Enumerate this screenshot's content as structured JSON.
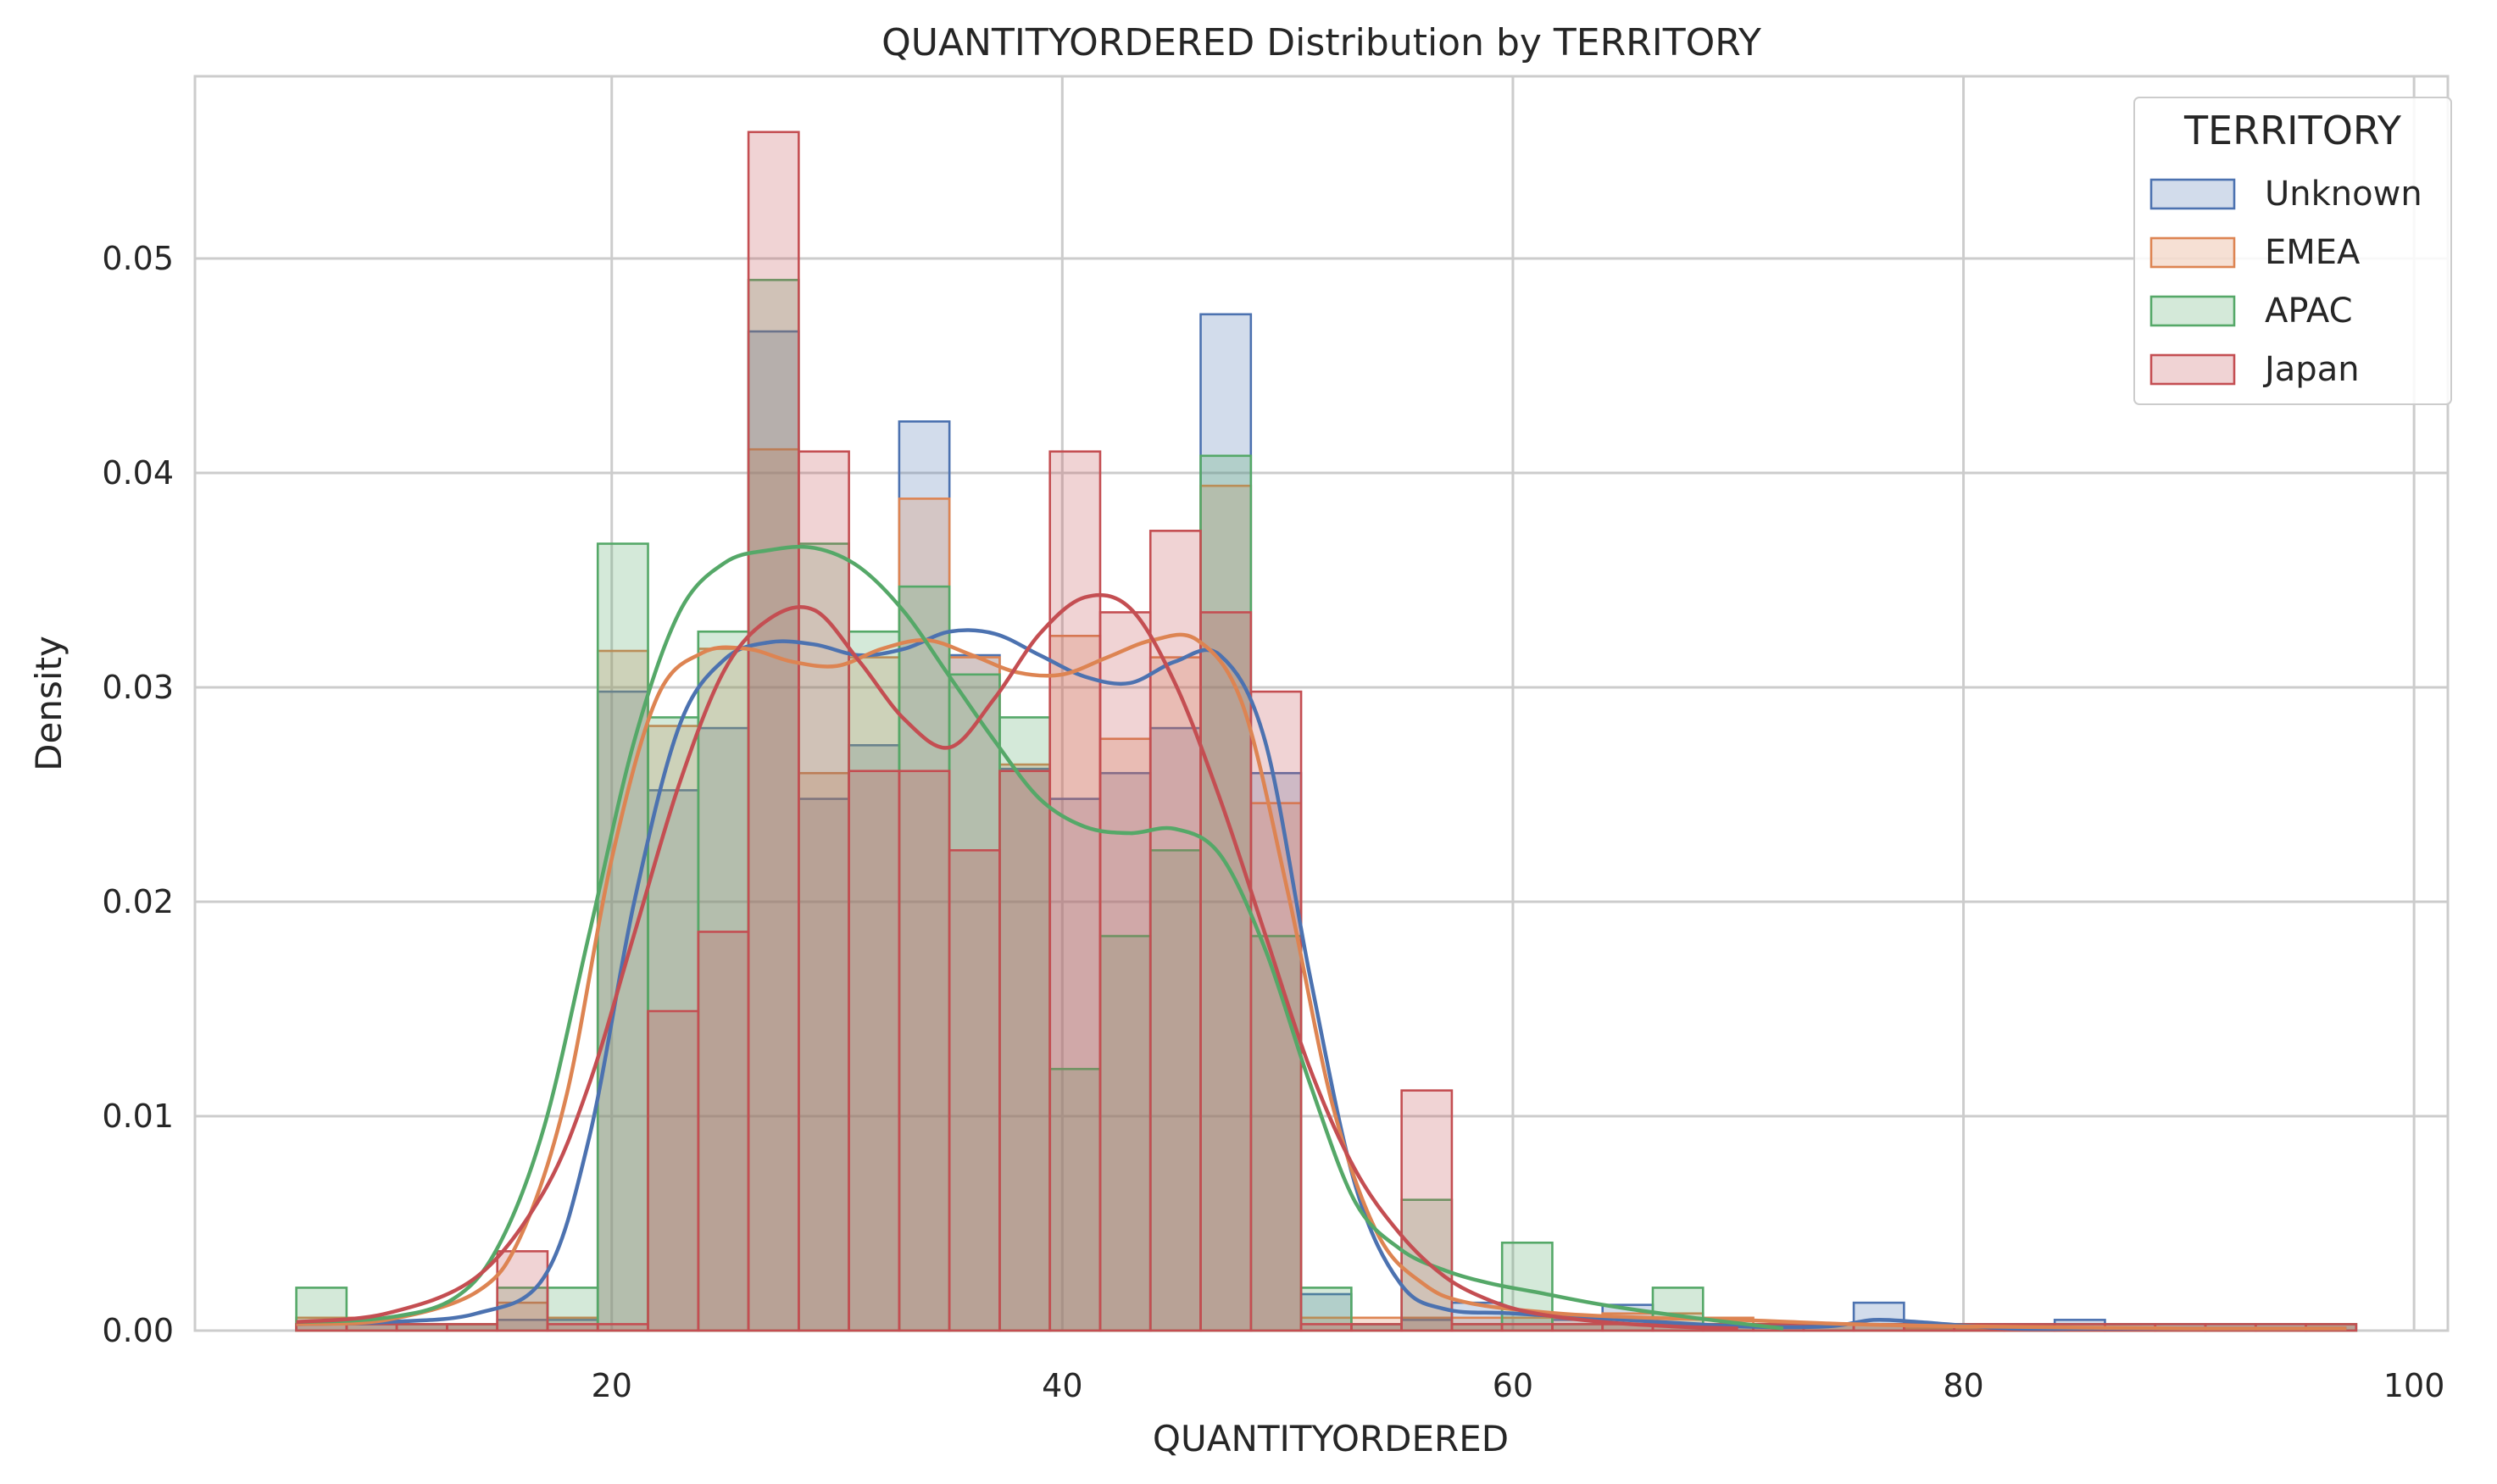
{
  "chart_data": {
    "type": "histogram",
    "title": "QUANTITYORDERED Distribution by TERRITORY",
    "xlabel": "QUANTITYORDERED",
    "ylabel": "Density",
    "xlim": [
      1.5,
      101.5
    ],
    "ylim": [
      0,
      0.0585
    ],
    "xticks": [
      20,
      40,
      60,
      80,
      100
    ],
    "yticks": [
      0.0,
      0.01,
      0.02,
      0.03,
      0.04,
      0.05
    ],
    "ytick_labels": [
      "0.00",
      "0.01",
      "0.02",
      "0.03",
      "0.04",
      "0.05"
    ],
    "grid": true,
    "legend": {
      "title": "TERRITORY",
      "placement": "top-right"
    },
    "bin_edges": [
      6,
      8.23,
      10.46,
      12.69,
      14.92,
      17.15,
      19.38,
      21.61,
      23.84,
      26.07,
      28.3,
      30.53,
      32.76,
      34.99,
      37.22,
      39.45,
      41.68,
      43.91,
      46.14,
      48.37,
      50.6,
      52.83,
      55.06,
      57.29,
      59.52,
      61.75,
      63.98,
      66.21,
      68.44,
      70.67,
      72.9,
      75.13,
      77.36,
      79.59,
      81.82,
      84.05,
      86.28,
      88.51,
      90.74,
      92.97,
      95.2,
      97.43
    ],
    "series": [
      {
        "name": "Unknown",
        "color": "#4c72b0",
        "densities": [
          0.0003,
          0.0003,
          0.0003,
          0.0003,
          0.0005,
          0.0005,
          0.0298,
          0.0252,
          0.0281,
          0.0466,
          0.0248,
          0.0273,
          0.0424,
          0.0315,
          0.0262,
          0.0248,
          0.026,
          0.0281,
          0.0474,
          0.026,
          0.0017,
          0.0003,
          0.0005,
          0.0013,
          0.0008,
          0.0005,
          0.0012,
          0.0003,
          0.0003,
          0.0003,
          0.0003,
          0.0013,
          0.0003,
          0.0003,
          0.0003,
          0.0005,
          0.0003,
          0.0003,
          0.0003,
          0.0003,
          0.0003
        ],
        "kde_x": [
          6,
          10,
          14,
          17,
          19,
          21,
          23,
          25,
          27,
          29,
          31,
          33,
          35,
          37,
          39,
          41,
          43,
          45,
          47,
          49,
          51,
          53,
          55,
          57,
          60,
          65,
          70,
          74,
          76,
          78,
          82,
          86,
          90,
          97
        ],
        "kde_y": [
          0.0003,
          0.0004,
          0.0008,
          0.0025,
          0.009,
          0.02,
          0.0282,
          0.0313,
          0.0321,
          0.032,
          0.0315,
          0.0318,
          0.0326,
          0.0325,
          0.0315,
          0.0305,
          0.0302,
          0.0312,
          0.0315,
          0.0275,
          0.0165,
          0.0068,
          0.0022,
          0.001,
          0.0008,
          0.0005,
          0.0002,
          0.0002,
          0.0005,
          0.0004,
          0.0001,
          0.0001,
          0.0001,
          0.0001
        ]
      },
      {
        "name": "EMEA",
        "color": "#dd8452",
        "densities": [
          0.0006,
          0.0006,
          0.0003,
          0.0003,
          0.0013,
          0.0006,
          0.0317,
          0.0282,
          0.0318,
          0.0411,
          0.026,
          0.0314,
          0.0388,
          0.0314,
          0.0264,
          0.0324,
          0.0276,
          0.0314,
          0.0394,
          0.0246,
          0.0006,
          0.0006,
          0.0006,
          0.0006,
          0.0006,
          0.0006,
          0.0008,
          0.0008,
          0.0006,
          0.0003,
          0.0003,
          0.0003,
          0.0001,
          0.0001,
          0.0001,
          0.0001,
          0.0001,
          0.0001,
          0.0001,
          0.0001,
          0.0003
        ],
        "kde_x": [
          6,
          10,
          14,
          16,
          18,
          20,
          22,
          24,
          26,
          28,
          30,
          32,
          34,
          36,
          38,
          40,
          42,
          44,
          46,
          48,
          50,
          52,
          54,
          56,
          58,
          62,
          66,
          70,
          75,
          80,
          90,
          97
        ],
        "kde_y": [
          0.0003,
          0.0005,
          0.0018,
          0.0045,
          0.011,
          0.022,
          0.0295,
          0.0316,
          0.0318,
          0.0312,
          0.031,
          0.0318,
          0.0322,
          0.0315,
          0.0307,
          0.0306,
          0.0314,
          0.0322,
          0.0322,
          0.0292,
          0.0205,
          0.0105,
          0.0045,
          0.0022,
          0.0013,
          0.0008,
          0.0006,
          0.0005,
          0.0003,
          0.0002,
          0.0001,
          0.0001
        ]
      },
      {
        "name": "APAC",
        "color": "#55a868",
        "densities": [
          0.002,
          0.0003,
          0.0003,
          0.0003,
          0.002,
          0.002,
          0.0367,
          0.0286,
          0.0326,
          0.049,
          0.0367,
          0.0326,
          0.0347,
          0.0306,
          0.0286,
          0.0122,
          0.0184,
          0.0224,
          0.0408,
          0.0184,
          0.002,
          0.0003,
          0.0061,
          0.0003,
          0.0041,
          0.0003,
          0.0003,
          0.002,
          0.0003,
          0.0003,
          0.0003,
          0.0003,
          0.0003,
          0.0003,
          0.0003,
          0.0003,
          0.0003,
          0.0003,
          0.0003,
          0.0003,
          0.0003
        ],
        "kde_x": [
          6,
          10,
          13,
          15,
          17,
          19,
          21,
          23,
          25,
          27,
          29,
          31,
          33,
          35,
          37,
          39,
          41,
          43,
          45,
          47,
          49,
          51,
          53,
          55,
          57,
          59,
          61,
          64,
          68,
          72
        ],
        "kde_y": [
          0.0004,
          0.0006,
          0.0015,
          0.004,
          0.0095,
          0.0185,
          0.0275,
          0.0335,
          0.0358,
          0.0364,
          0.0365,
          0.0356,
          0.0335,
          0.0305,
          0.0275,
          0.0248,
          0.0235,
          0.0232,
          0.0234,
          0.0222,
          0.0178,
          0.0115,
          0.006,
          0.0038,
          0.0028,
          0.0022,
          0.0018,
          0.0012,
          0.0006,
          0.0001
        ]
      },
      {
        "name": "Japan",
        "color": "#c44e52",
        "densities": [
          0.0003,
          0.0003,
          0.0003,
          0.0003,
          0.0037,
          0.0003,
          0.0003,
          0.0149,
          0.0186,
          0.0559,
          0.041,
          0.0261,
          0.0261,
          0.0224,
          0.0261,
          0.041,
          0.0335,
          0.0373,
          0.0335,
          0.0298,
          0.0003,
          0.0003,
          0.0112,
          0.0003,
          0.0003,
          0.0003,
          0.0003,
          0.0003,
          0.0003,
          0.0003,
          0.0003,
          0.0003,
          0.0003,
          0.0003,
          0.0003,
          0.0003,
          0.0003,
          0.0003,
          0.0003,
          0.0003,
          0.0003
        ],
        "kde_x": [
          6,
          10,
          14,
          17,
          19,
          21,
          23,
          25,
          27,
          29,
          31,
          33,
          35,
          37,
          39,
          41,
          43,
          45,
          47,
          49,
          51,
          53,
          55,
          57,
          59,
          61,
          64,
          67,
          70
        ],
        "kde_y": [
          0.0004,
          0.0008,
          0.0025,
          0.0065,
          0.0115,
          0.0185,
          0.0255,
          0.0308,
          0.0332,
          0.0336,
          0.0312,
          0.0285,
          0.0272,
          0.0295,
          0.0325,
          0.0342,
          0.0337,
          0.0302,
          0.0248,
          0.0185,
          0.0122,
          0.0075,
          0.0045,
          0.0025,
          0.0014,
          0.0008,
          0.0004,
          0.0002,
          0.0001
        ]
      }
    ]
  }
}
